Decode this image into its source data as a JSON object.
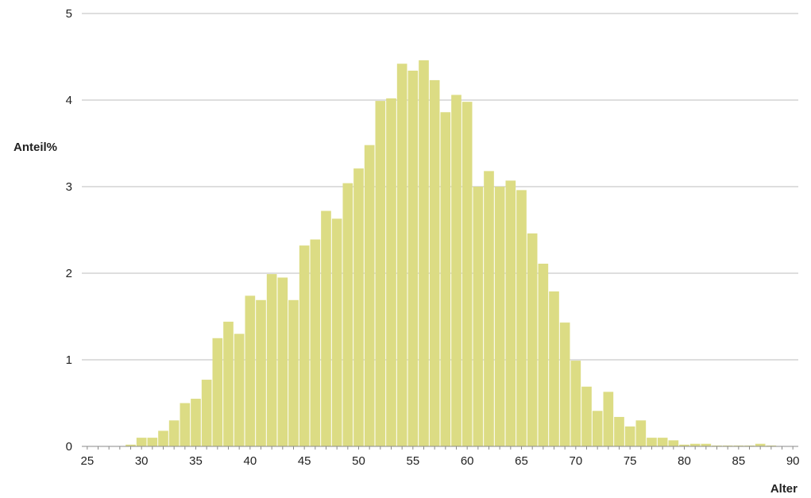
{
  "chart_data": {
    "type": "bar",
    "title": "",
    "xlabel": "Alter",
    "ylabel": "Anteil%",
    "xlim": [
      24.5,
      90.5
    ],
    "ylim": [
      0,
      5
    ],
    "yticks": [
      0,
      1,
      2,
      3,
      4,
      5
    ],
    "xticks": [
      25,
      30,
      35,
      40,
      45,
      50,
      55,
      60,
      65,
      70,
      75,
      80,
      85,
      90
    ],
    "grid": "horizontal",
    "legend": "none",
    "bar_color": "#dcdc84",
    "grid_color": "#bdbdbd",
    "ages": [
      25,
      26,
      27,
      28,
      29,
      30,
      31,
      32,
      33,
      34,
      35,
      36,
      37,
      38,
      39,
      40,
      41,
      42,
      43,
      44,
      45,
      46,
      47,
      48,
      49,
      50,
      51,
      52,
      53,
      54,
      55,
      56,
      57,
      58,
      59,
      60,
      61,
      62,
      63,
      64,
      65,
      66,
      67,
      68,
      69,
      70,
      71,
      72,
      73,
      74,
      75,
      76,
      77,
      78,
      79,
      80,
      81,
      82,
      83,
      84,
      85,
      86,
      87,
      88,
      89,
      90
    ],
    "values": [
      0,
      0,
      0,
      0,
      0.02,
      0.1,
      0.1,
      0.18,
      0.3,
      0.5,
      0.55,
      0.77,
      1.25,
      1.44,
      1.3,
      1.74,
      1.69,
      1.99,
      1.95,
      1.69,
      2.32,
      2.39,
      2.72,
      2.63,
      3.04,
      3.21,
      3.48,
      3.99,
      4.02,
      4.42,
      4.34,
      4.46,
      4.23,
      3.86,
      4.06,
      3.98,
      3.0,
      3.18,
      3.0,
      3.07,
      2.96,
      2.46,
      2.11,
      1.79,
      1.43,
      0.99,
      0.69,
      0.41,
      0.63,
      0.34,
      0.23,
      0.3,
      0.1,
      0.1,
      0.07,
      0.02,
      0.03,
      0.03,
      0.01,
      0.01,
      0.01,
      0.01,
      0.03,
      0.01,
      0,
      0
    ]
  }
}
